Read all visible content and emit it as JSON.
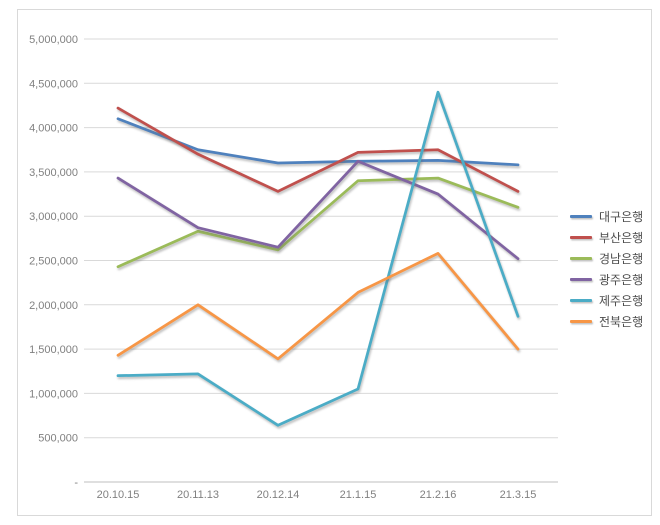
{
  "chart_data": {
    "type": "line",
    "categories": [
      "20.10.15",
      "20.11.13",
      "20.12.14",
      "21.1.15",
      "21.2.16",
      "21.3.15"
    ],
    "series": [
      {
        "name": "대구은행",
        "color": "#4F81BD",
        "values": [
          4100000,
          3750000,
          3600000,
          3620000,
          3630000,
          3580000
        ]
      },
      {
        "name": "부산은행",
        "color": "#C0504D",
        "values": [
          4220000,
          3700000,
          3280000,
          3720000,
          3750000,
          3280000
        ]
      },
      {
        "name": "경남은행",
        "color": "#9BBB59",
        "values": [
          2430000,
          2830000,
          2620000,
          3400000,
          3430000,
          3100000
        ]
      },
      {
        "name": "광주은행",
        "color": "#8064A2",
        "values": [
          3430000,
          2870000,
          2650000,
          3620000,
          3250000,
          2520000
        ]
      },
      {
        "name": "제주은행",
        "color": "#4BACC6",
        "values": [
          1200000,
          1220000,
          640000,
          1050000,
          4400000,
          1870000
        ]
      },
      {
        "name": "전북은행",
        "color": "#F79646",
        "values": [
          1430000,
          2000000,
          1390000,
          2140000,
          2580000,
          1500000
        ]
      }
    ],
    "title": "",
    "xlabel": "",
    "ylabel": "",
    "ylim": [
      0,
      5000000
    ],
    "ytick_step": 500000,
    "ytick_labels": [
      "-",
      "500,000",
      "1,000,000",
      "1,500,000",
      "2,000,000",
      "2,500,000",
      "3,000,000",
      "3,500,000",
      "4,000,000",
      "4,500,000",
      "5,000,000"
    ],
    "grid": true,
    "legend_position": "right"
  },
  "colors": {
    "background": "#FFFFFF",
    "frame_border": "#D9D9D9",
    "gridline": "#D9D9D9",
    "axis_line": "#BFBFBF",
    "tick_label": "#808080",
    "legend_text": "#4D4D4D"
  }
}
